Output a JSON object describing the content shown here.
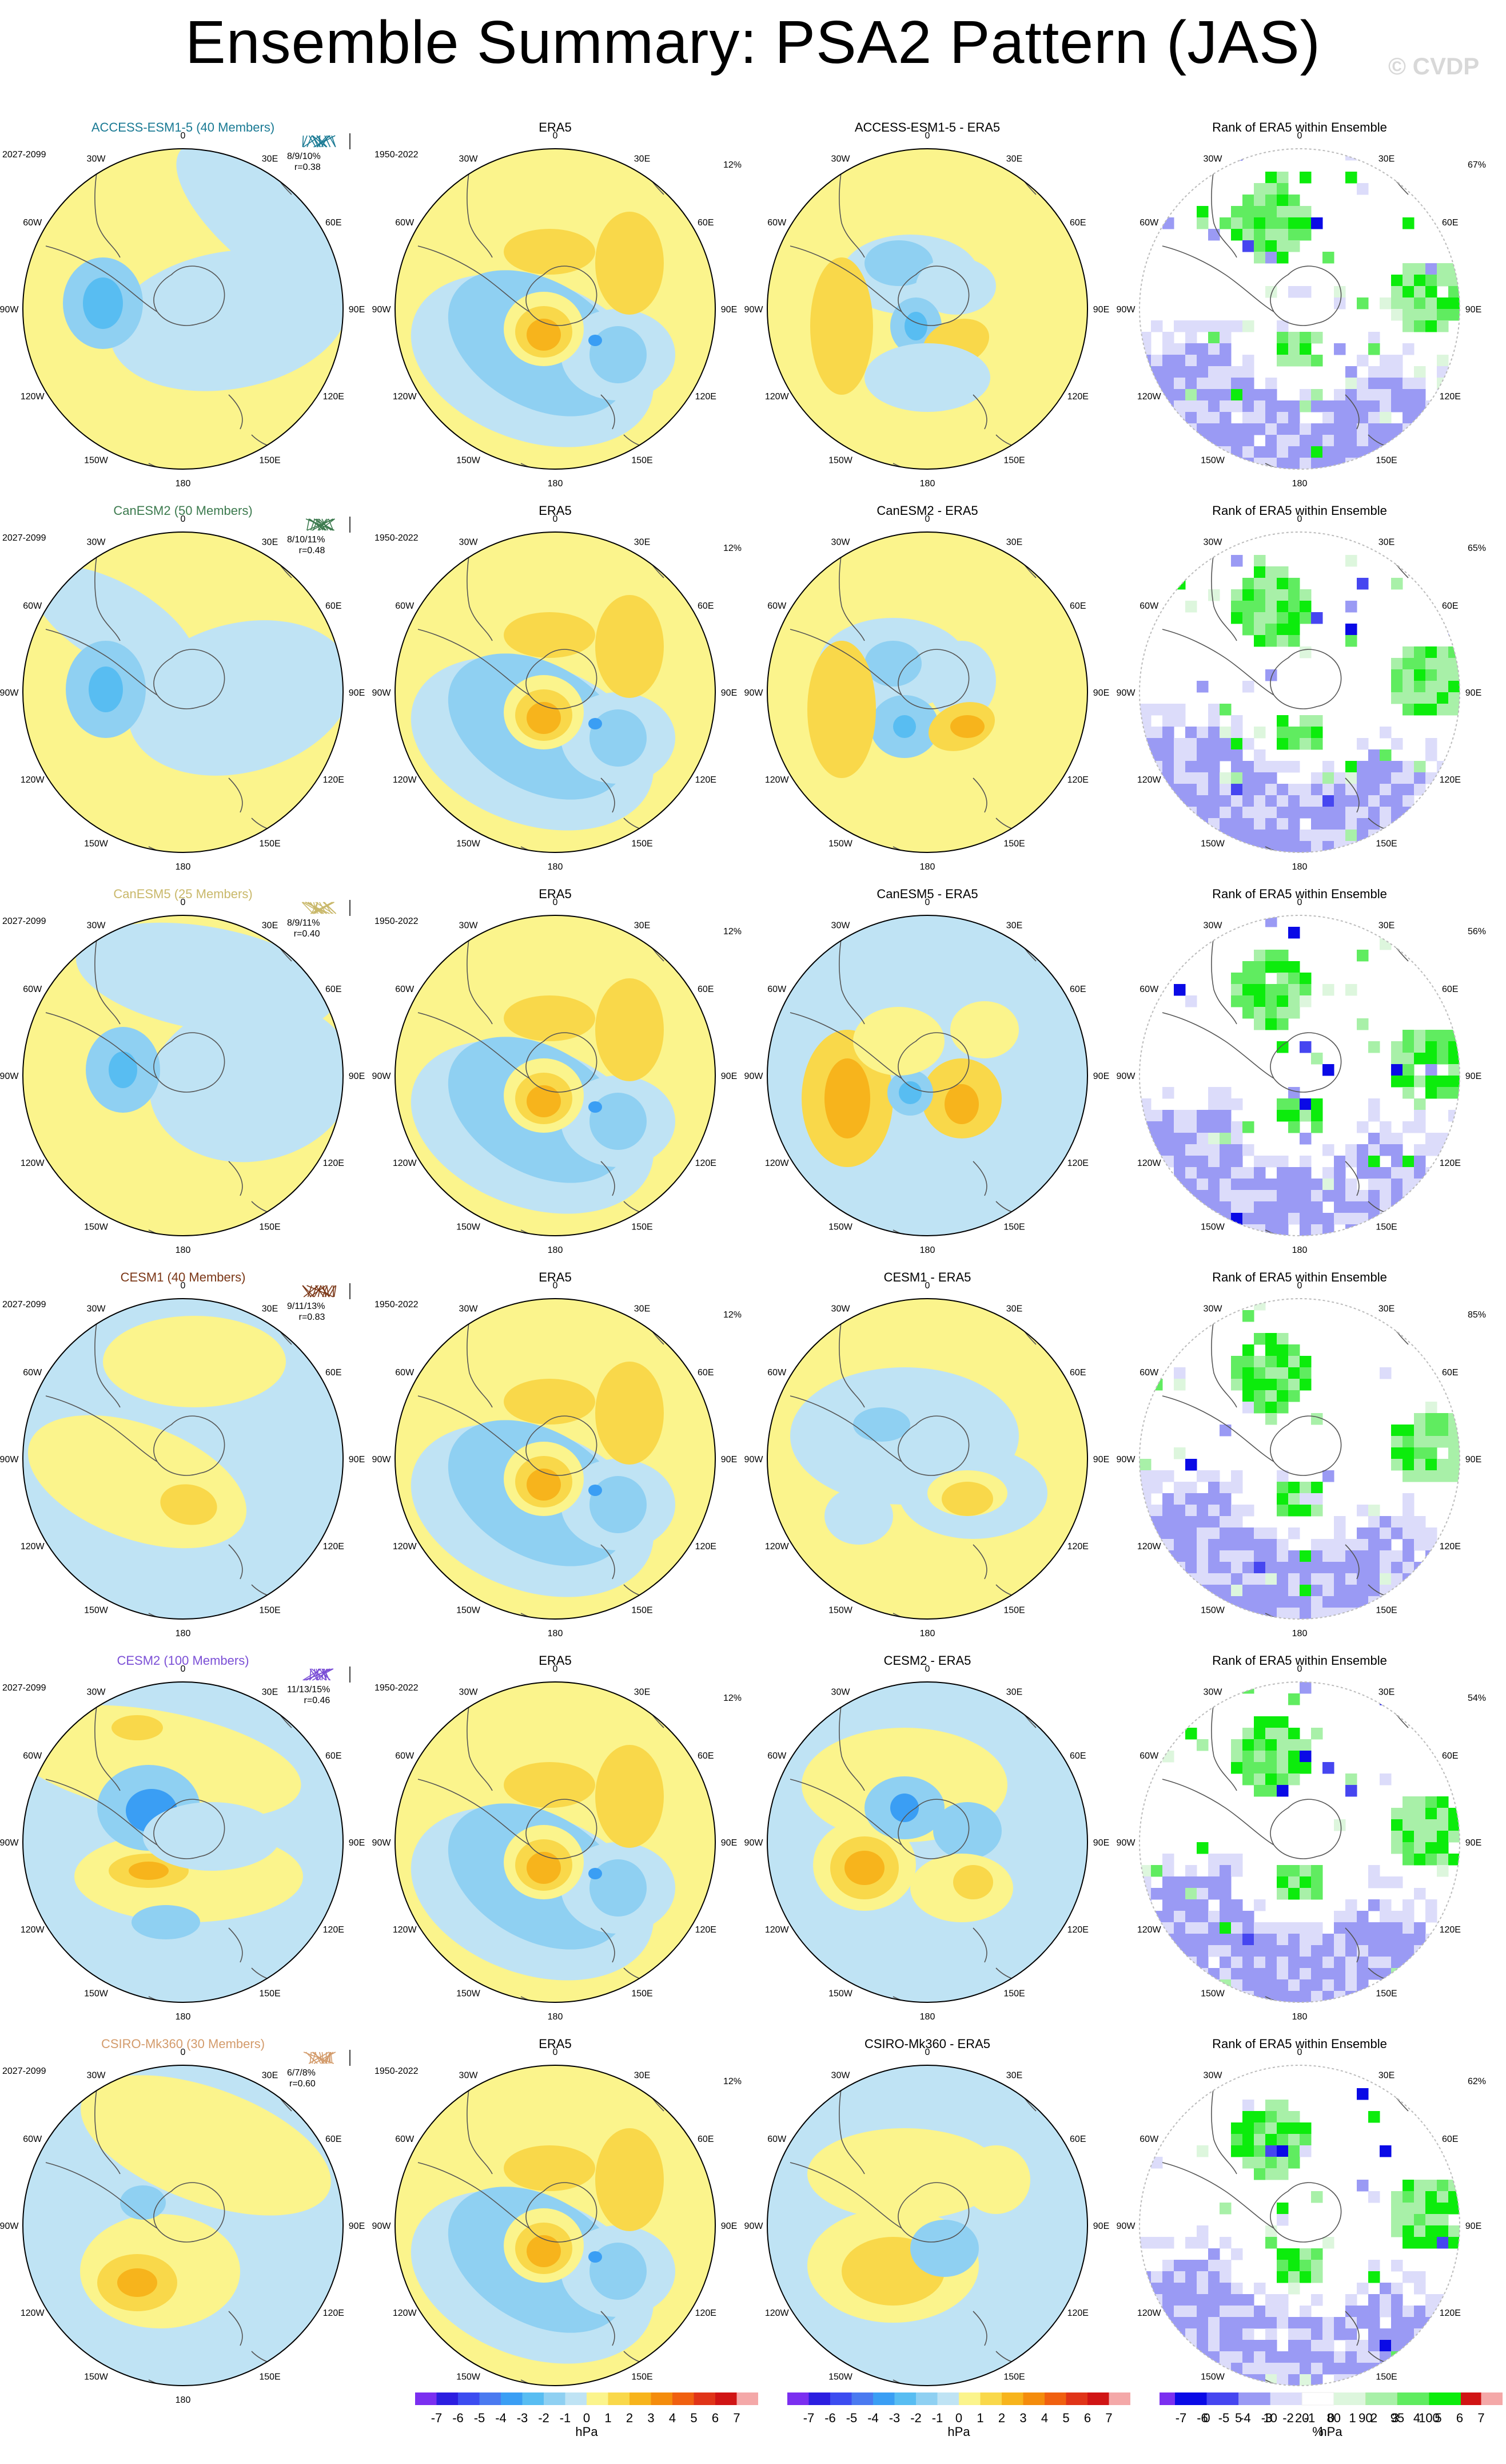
{
  "title": "Ensemble Summary: PSA2 Pattern (JAS)",
  "watermark": "© CVDP",
  "colors": {
    "land_outline": "#555555",
    "model_title_colors": {
      "ACCESS-ESM1-5": "#1a7a94",
      "CanESM2": "#3c7a4e",
      "CanESM5": "#c9b86a",
      "CESM1": "#7a3616",
      "CESM2": "#7b4fd6",
      "CSIRO-Mk360": "#d39b6b"
    }
  },
  "lon_labels": [
    "0",
    "30E",
    "60E",
    "90E",
    "120E",
    "150E",
    "180",
    "150W",
    "120W",
    "90W",
    "60W",
    "30W"
  ],
  "ensemble_period": "2027-2099",
  "obs_period": "1950-2022",
  "obs_pct": "12%",
  "rank_title": "Rank of ERA5 within Ensemble",
  "obs_title": "ERA5",
  "rows": [
    {
      "model": "ACCESS-ESM1-5",
      "title": "ACCESS-ESM1-5 (40 Members)",
      "stats1": "8/9/10%",
      "stats2": "r=0.38",
      "diff_title": "ACCESS-ESM1-5 - ERA5",
      "rank_pct": "67%"
    },
    {
      "model": "CanESM2",
      "title": "CanESM2 (50 Members)",
      "stats1": "8/10/11%",
      "stats2": "r=0.48",
      "diff_title": "CanESM2 - ERA5",
      "rank_pct": "65%"
    },
    {
      "model": "CanESM5",
      "title": "CanESM5 (25 Members)",
      "stats1": "8/9/11%",
      "stats2": "r=0.40",
      "diff_title": "CanESM5 - ERA5",
      "rank_pct": "56%"
    },
    {
      "model": "CESM1",
      "title": "CESM1 (40 Members)",
      "stats1": "9/11/13%",
      "stats2": "r=0.83",
      "diff_title": "CESM1 - ERA5",
      "rank_pct": "85%"
    },
    {
      "model": "CESM2",
      "title": "CESM2 (100 Members)",
      "stats1": "11/13/15%",
      "stats2": "r=0.46",
      "diff_title": "CESM2 - ERA5",
      "rank_pct": "54%"
    },
    {
      "model": "CSIRO-Mk360",
      "title": "CSIRO-Mk360 (30 Members)",
      "stats1": "6/7/8%",
      "stats2": "r=0.60",
      "diff_title": "CSIRO-Mk360 - ERA5",
      "rank_pct": "62%"
    }
  ],
  "colorbar_hpa": {
    "unit": "hPa",
    "labels": [
      "-7",
      "-6",
      "-5",
      "-4",
      "-3",
      "-2",
      "-1",
      "0",
      "1",
      "2",
      "3",
      "4",
      "5",
      "6",
      "7"
    ],
    "colors": [
      "#7b2ff0",
      "#2c1ee0",
      "#3c4cf0",
      "#4a7af0",
      "#3a9ef4",
      "#58bdf2",
      "#8fd0f2",
      "#bfe3f4",
      "#fbf48c",
      "#f9d84a",
      "#f7b41c",
      "#f48c0c",
      "#f06010",
      "#e03418",
      "#d01414",
      "#f4a8a8"
    ]
  },
  "colorbar_pct": {
    "unit": "%",
    "labels": [
      "0",
      "5",
      "10",
      "20",
      "80",
      "90",
      "95",
      "100"
    ],
    "colors": [
      "#0a0ae6",
      "#4646f0",
      "#9a9af4",
      "#dcdcfa",
      "#ffffff",
      "#ddf6dd",
      "#a8f0a8",
      "#60ec60",
      "#0cec0c"
    ]
  },
  "chart_data": [
    {
      "type": "heatmap",
      "description_units": "hPa",
      "panels_per_row": [
        "ensemble mean pattern",
        "ERA5 pattern",
        "difference (model - ERA5)",
        "rank of ERA5 within ensemble (%)"
      ],
      "models": [
        "ACCESS-ESM1-5",
        "CanESM2",
        "CanESM5",
        "CESM1",
        "CESM2",
        "CSIRO-Mk360"
      ],
      "contour_levels_hpa": [
        -7,
        -6,
        -5,
        -4,
        -3,
        -2,
        -1,
        0,
        1,
        2,
        3,
        4,
        5,
        6,
        7
      ],
      "rank_levels_pct": [
        0,
        5,
        10,
        20,
        80,
        90,
        95,
        100
      ]
    }
  ]
}
